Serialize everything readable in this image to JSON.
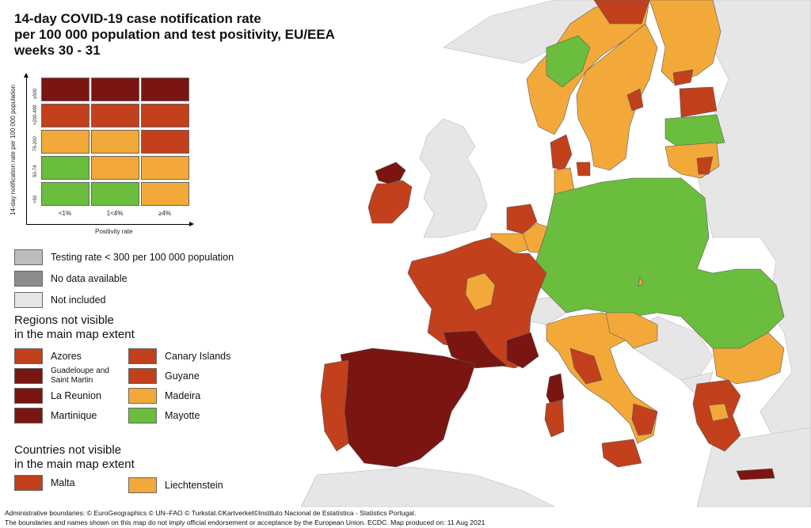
{
  "title": {
    "line1": "14-day COVID-19 case notification rate",
    "line2": "per 100 000 population and test positivity, EU/EEA",
    "line3": "weeks 30 - 31"
  },
  "colors": {
    "dark_red": "#7b1511",
    "red": "#c2401c",
    "orange": "#f3a93a",
    "green": "#6bbd3d",
    "grey_testing": "#bdbdbd",
    "grey_nodata": "#8c8c8c",
    "not_included": "#e6e6e6",
    "sea": "#ffffff",
    "border": "#5a5a5a"
  },
  "matrix": {
    "y_axis_label": "14-day notification rate per 100 000 population",
    "x_axis_label": "Positivity rate",
    "rows": [
      "≥500",
      ">200-499",
      "75-200",
      "50-74",
      "<50"
    ],
    "cols": [
      "<1%",
      "1<4%",
      "≥4%"
    ],
    "cells": [
      [
        "dark_red",
        "dark_red",
        "dark_red"
      ],
      [
        "red",
        "red",
        "red"
      ],
      [
        "orange",
        "orange",
        "red"
      ],
      [
        "green",
        "orange",
        "orange"
      ],
      [
        "green",
        "green",
        "orange"
      ]
    ]
  },
  "legend": {
    "testing": "Testing rate < 300 per 100 000 population",
    "no_data": "No data available",
    "not_included": "Not included"
  },
  "regions": {
    "heading_line1": "Regions not visible",
    "heading_line2": "in the main map extent",
    "items": [
      {
        "name": "Azores",
        "color": "red"
      },
      {
        "name": "Canary Islands",
        "color": "red"
      },
      {
        "name": "Guadeloupe and Saint Martin",
        "color": "dark_red"
      },
      {
        "name": "Guyane",
        "color": "red"
      },
      {
        "name": "La Reunion",
        "color": "dark_red"
      },
      {
        "name": "Madeira",
        "color": "orange"
      },
      {
        "name": "Martinique",
        "color": "dark_red"
      },
      {
        "name": "Mayotte",
        "color": "green"
      }
    ]
  },
  "countries": {
    "heading_line1": "Countries not visible",
    "heading_line2": "in the main map extent",
    "items": [
      {
        "name": "Malta",
        "color": "red"
      },
      {
        "name": "Liechtenstein",
        "color": "orange"
      }
    ]
  },
  "footer": {
    "line1": "Administrative boundaries: © EuroGeographics © UN–FAO © Turkstat.©Kartverket©Instituto Nacional de Estatística - Statistics Portugal.",
    "line2": "The boundaries and names shown on this map do not imply official endorsement or acceptance by the European Union. ECDC. Map produced on: 11 Aug 2021"
  }
}
